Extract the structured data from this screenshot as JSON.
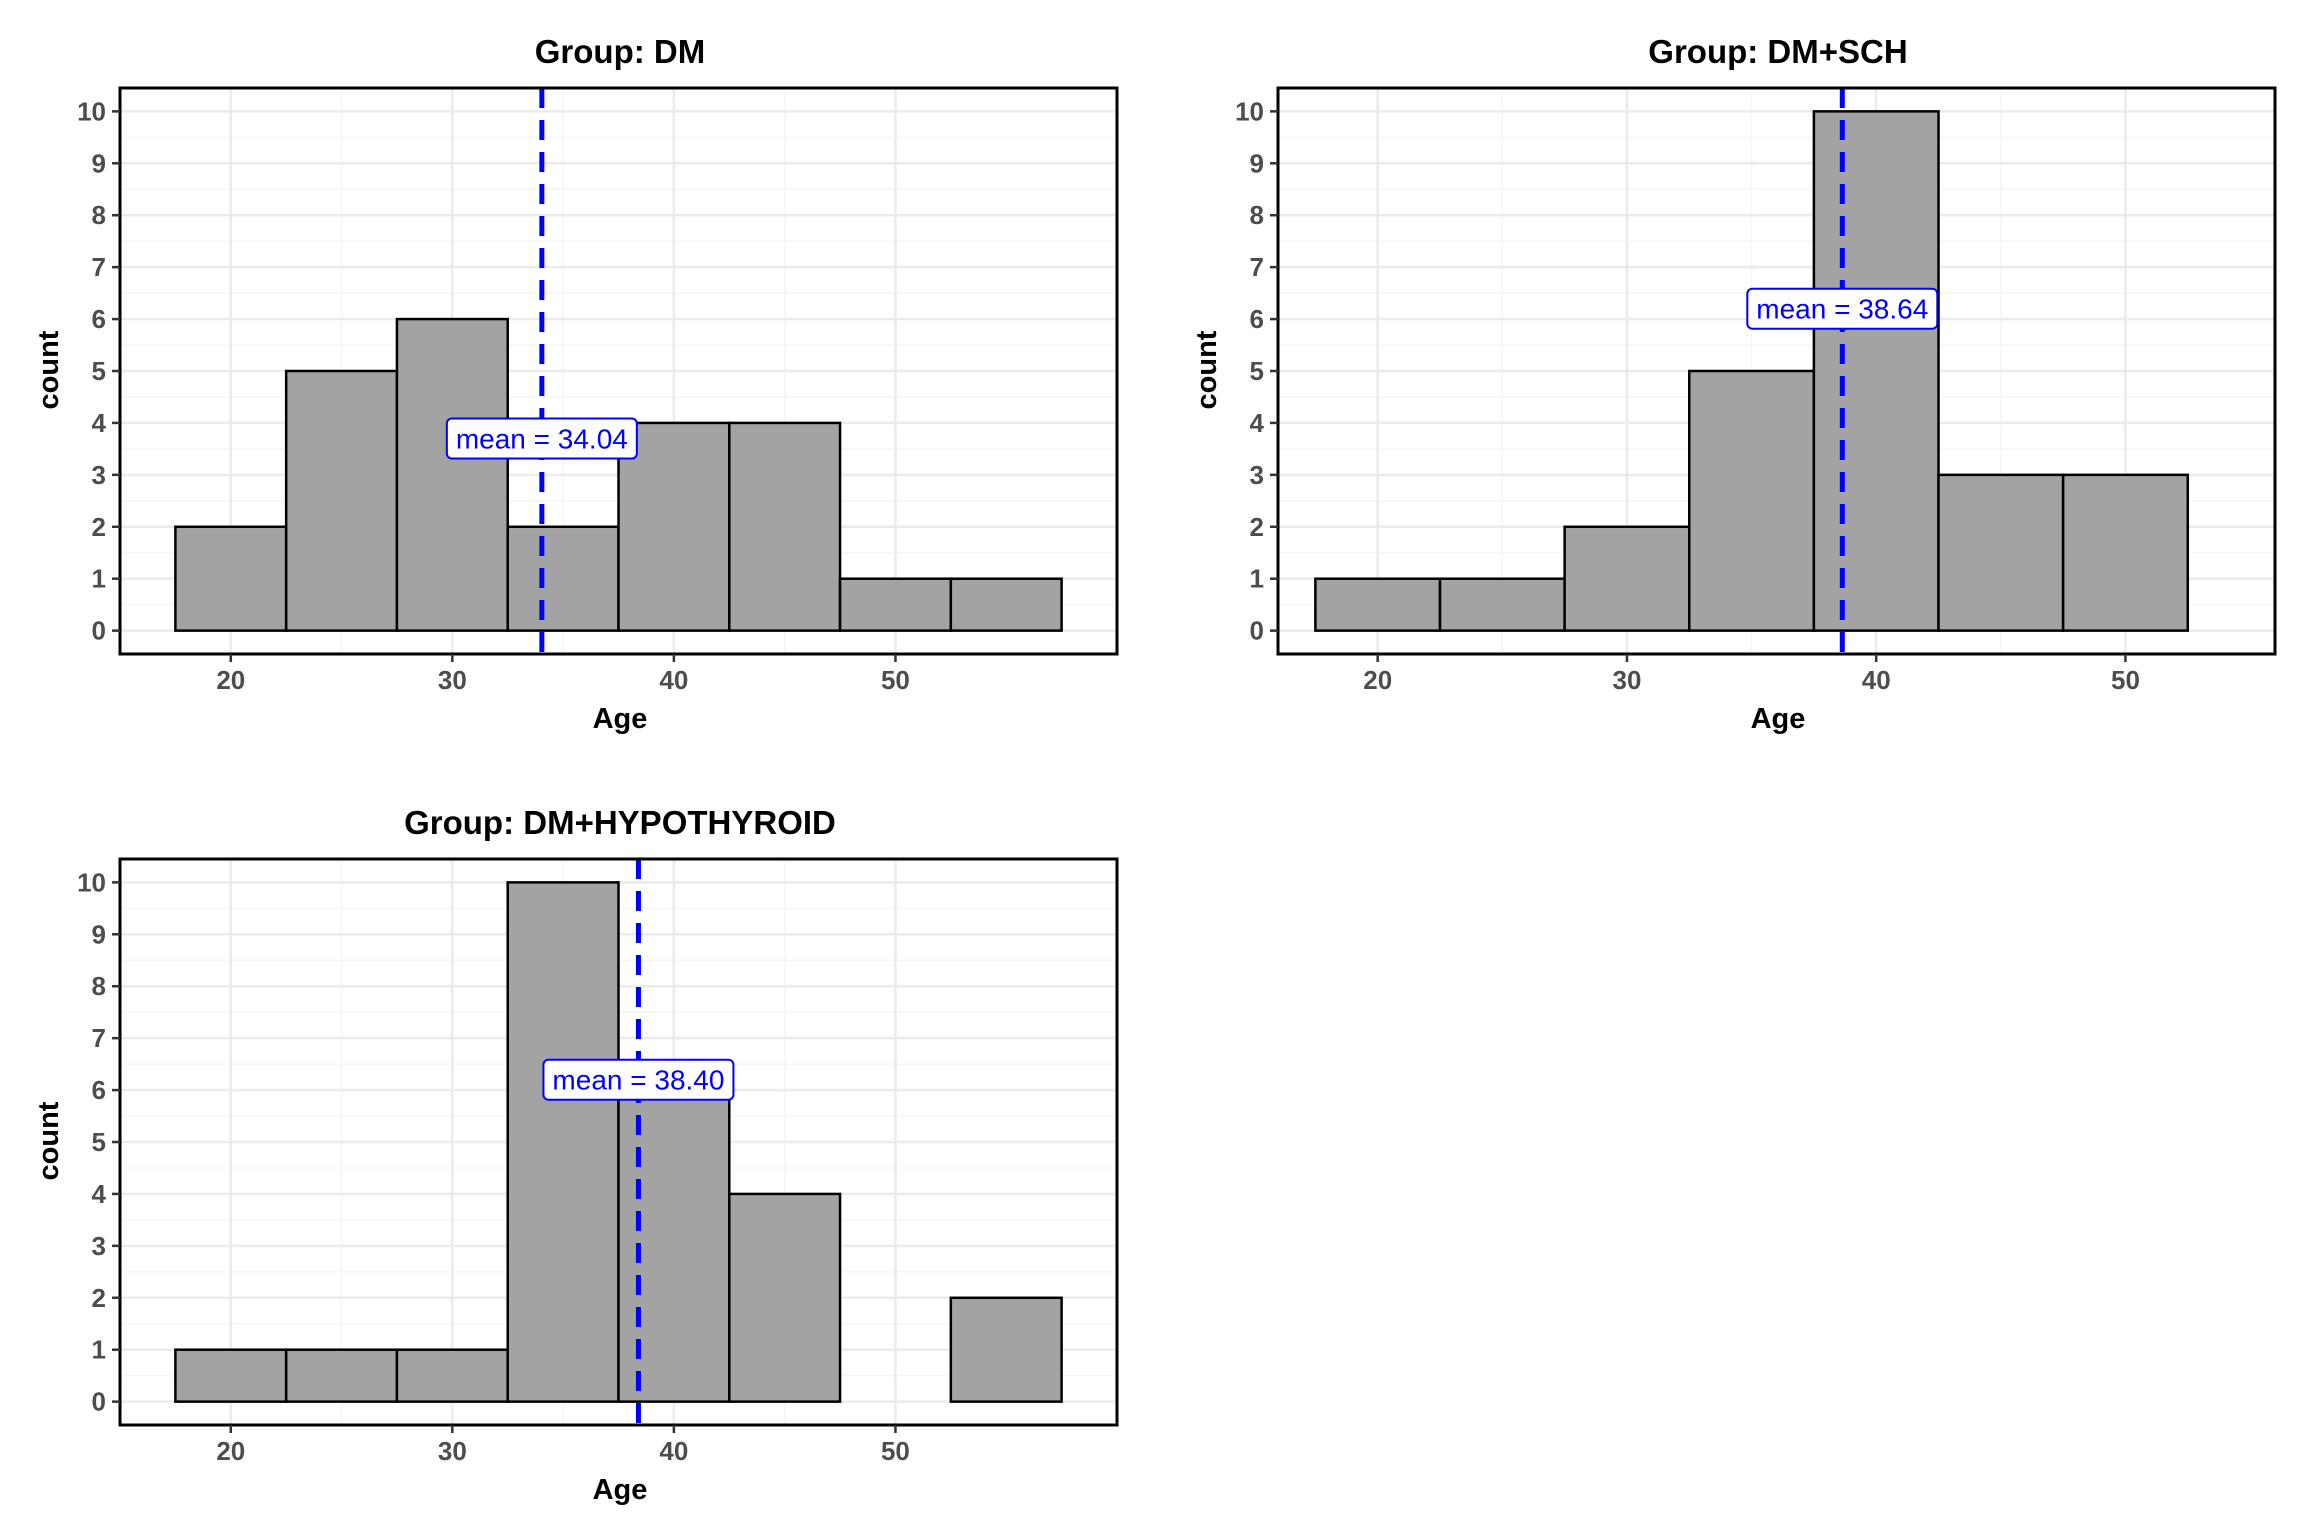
{
  "colors": {
    "bar_fill": "#a3a3a3",
    "bar_stroke": "#000000",
    "mean_line": "#0000ff",
    "grid_major": "#ebebeb",
    "grid_minor": "#f5f5f5",
    "panel_border": "#000000"
  },
  "chart_data": [
    {
      "type": "bar",
      "title": "Group: DM",
      "xlabel": "Age",
      "ylabel": "count",
      "xlim": [
        15,
        60
      ],
      "ylim": [
        -0.45,
        10.45
      ],
      "xticks": [
        20,
        30,
        40,
        50
      ],
      "yticks": [
        0,
        1,
        2,
        3,
        4,
        5,
        6,
        7,
        8,
        9,
        10
      ],
      "bin_width": 5,
      "bin_starts": [
        17.5,
        22.5,
        27.5,
        32.5,
        37.5,
        42.5,
        47.5,
        52.5
      ],
      "values": [
        2,
        5,
        6,
        2,
        4,
        4,
        1,
        1
      ],
      "mean": 34.04,
      "mean_label": "mean = 34.04",
      "mean_label_y": 3.7,
      "grid": true
    },
    {
      "type": "bar",
      "title": "Group: DM+SCH",
      "xlabel": "Age",
      "ylabel": "count",
      "xlim": [
        16,
        56
      ],
      "ylim": [
        -0.45,
        10.45
      ],
      "xticks": [
        20,
        30,
        40,
        50
      ],
      "yticks": [
        0,
        1,
        2,
        3,
        4,
        5,
        6,
        7,
        8,
        9,
        10
      ],
      "bin_width": 5,
      "bin_starts": [
        17.5,
        22.5,
        27.5,
        32.5,
        37.5,
        42.5,
        47.5
      ],
      "values": [
        1,
        1,
        2,
        5,
        10,
        3,
        3
      ],
      "mean": 38.64,
      "mean_label": "mean = 38.64",
      "mean_label_y": 6.2,
      "grid": true
    },
    {
      "type": "bar",
      "title": "Group: DM+HYPOTHYROID",
      "xlabel": "Age",
      "ylabel": "count",
      "xlim": [
        15,
        60
      ],
      "ylim": [
        -0.45,
        10.45
      ],
      "xticks": [
        20,
        30,
        40,
        50
      ],
      "yticks": [
        0,
        1,
        2,
        3,
        4,
        5,
        6,
        7,
        8,
        9,
        10
      ],
      "bin_width": 5,
      "bin_starts": [
        17.5,
        22.5,
        27.5,
        32.5,
        37.5,
        42.5,
        47.5,
        52.5
      ],
      "values": [
        1,
        1,
        1,
        10,
        6,
        4,
        0,
        2
      ],
      "mean": 38.4,
      "mean_label": "mean = 38.40",
      "mean_label_y": 6.2,
      "grid": true
    }
  ]
}
